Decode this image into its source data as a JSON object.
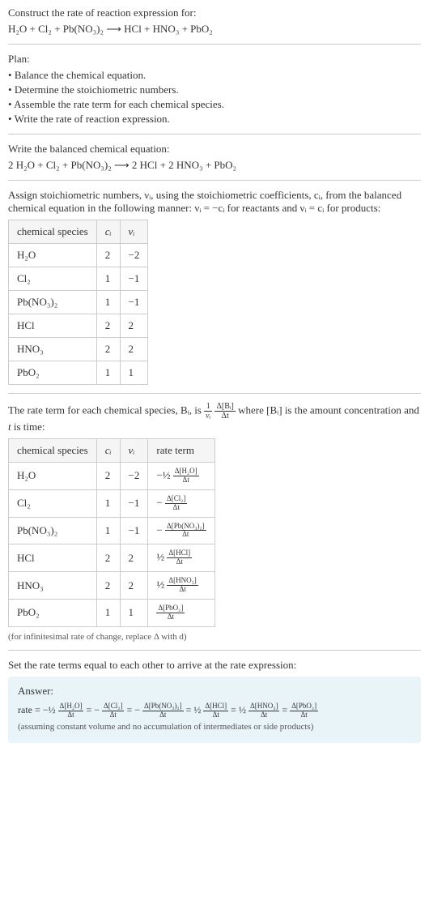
{
  "intro": {
    "line1": "Construct the rate of reaction expression for:",
    "equation": "H₂O + Cl₂ + Pb(NO₃)₂  ⟶  HCl + HNO₃ + PbO₂"
  },
  "plan": {
    "title": "Plan:",
    "items": [
      "Balance the chemical equation.",
      "Determine the stoichiometric numbers.",
      "Assemble the rate term for each chemical species.",
      "Write the rate of reaction expression."
    ]
  },
  "balanced": {
    "title": "Write the balanced chemical equation:",
    "equation": "2 H₂O + Cl₂ + Pb(NO₃)₂  ⟶  2 HCl + 2 HNO₃ + PbO₂"
  },
  "assign": {
    "text": "Assign stoichiometric numbers, νᵢ, using the stoichiometric coefficients, cᵢ, from the balanced chemical equation in the following manner: νᵢ = −cᵢ for reactants and νᵢ = cᵢ for products:"
  },
  "table1": {
    "headers": [
      "chemical species",
      "cᵢ",
      "νᵢ"
    ],
    "rows": [
      [
        "H₂O",
        "2",
        "−2"
      ],
      [
        "Cl₂",
        "1",
        "−1"
      ],
      [
        "Pb(NO₃)₂",
        "1",
        "−1"
      ],
      [
        "HCl",
        "2",
        "2"
      ],
      [
        "HNO₃",
        "2",
        "2"
      ],
      [
        "PbO₂",
        "1",
        "1"
      ]
    ]
  },
  "rateTermText": {
    "prefix": "The rate term for each chemical species, Bᵢ, is ",
    "mid": " where [Bᵢ] is the amount concentration and ",
    "tvar": "t",
    "suffix": " is time:"
  },
  "table2": {
    "headers": [
      "chemical species",
      "cᵢ",
      "νᵢ",
      "rate term"
    ],
    "rows": [
      {
        "species": "H₂O",
        "c": "2",
        "v": "−2",
        "term": {
          "coef": "−½",
          "num": "Δ[H₂O]",
          "den": "Δt"
        }
      },
      {
        "species": "Cl₂",
        "c": "1",
        "v": "−1",
        "term": {
          "coef": "−",
          "num": "Δ[Cl₂]",
          "den": "Δt"
        }
      },
      {
        "species": "Pb(NO₃)₂",
        "c": "1",
        "v": "−1",
        "term": {
          "coef": "−",
          "num": "Δ[Pb(NO₃)₂]",
          "den": "Δt"
        }
      },
      {
        "species": "HCl",
        "c": "2",
        "v": "2",
        "term": {
          "coef": "½",
          "num": "Δ[HCl]",
          "den": "Δt"
        }
      },
      {
        "species": "HNO₃",
        "c": "2",
        "v": "2",
        "term": {
          "coef": "½",
          "num": "Δ[HNO₃]",
          "den": "Δt"
        }
      },
      {
        "species": "PbO₂",
        "c": "1",
        "v": "1",
        "term": {
          "coef": "",
          "num": "Δ[PbO₂]",
          "den": "Δt"
        }
      }
    ]
  },
  "note1": "(for infinitesimal rate of change, replace Δ with d)",
  "setText": "Set the rate terms equal to each other to arrive at the rate expression:",
  "answer": {
    "title": "Answer:",
    "parts": [
      {
        "coef": "−½",
        "num": "Δ[H₂O]",
        "den": "Δt"
      },
      {
        "coef": "−",
        "num": "Δ[Cl₂]",
        "den": "Δt"
      },
      {
        "coef": "−",
        "num": "Δ[Pb(NO₃)₂]",
        "den": "Δt"
      },
      {
        "coef": "½",
        "num": "Δ[HCl]",
        "den": "Δt"
      },
      {
        "coef": "½",
        "num": "Δ[HNO₃]",
        "den": "Δt"
      },
      {
        "coef": "",
        "num": "Δ[PbO₂]",
        "den": "Δt"
      }
    ],
    "prefix": "rate = ",
    "note": "(assuming constant volume and no accumulation of intermediates or side products)"
  },
  "fracMain": {
    "num1": "1",
    "den1": "νᵢ",
    "num2": "Δ[Bᵢ]",
    "den2": "Δt"
  }
}
